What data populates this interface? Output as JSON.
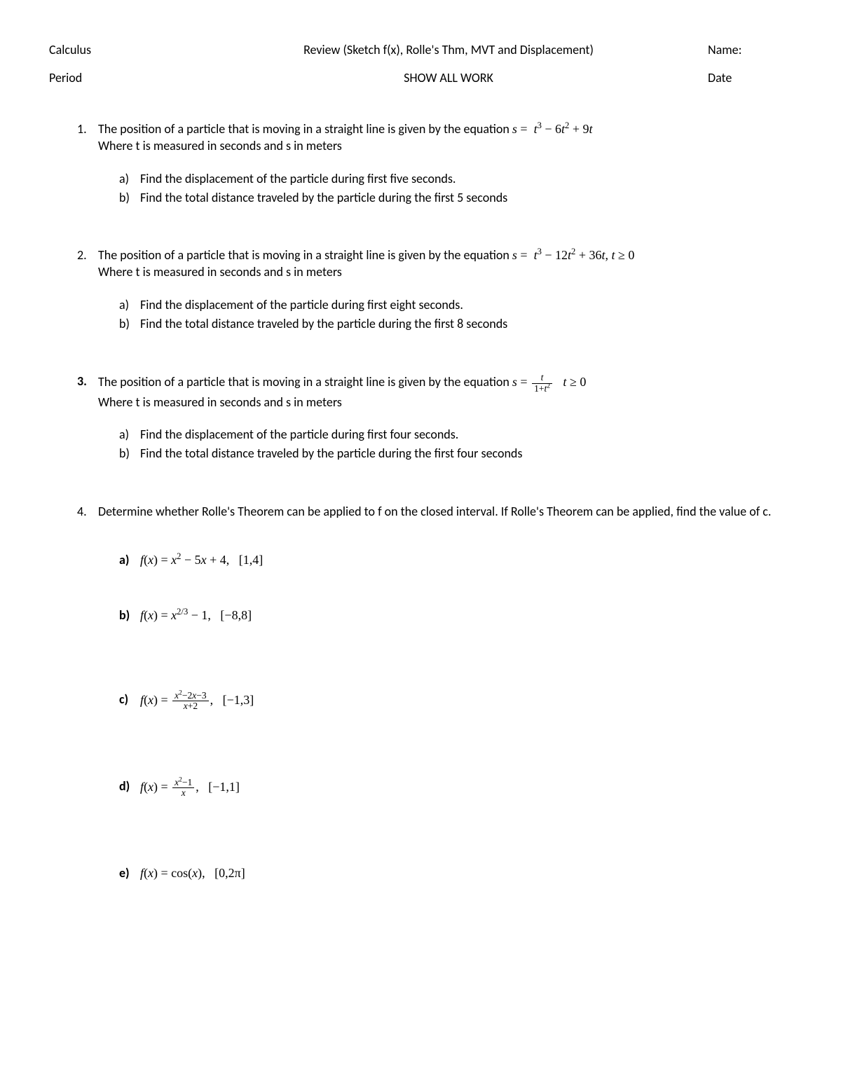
{
  "header": {
    "row1": {
      "left": "Calculus",
      "center": "Review (Sketch f(x), Rolle's Thm, MVT and Displacement)",
      "right": "Name:"
    },
    "row2": {
      "left": "Period",
      "center": "SHOW ALL WORK",
      "right": "Date"
    }
  },
  "problems": [
    {
      "num": "1.",
      "intro_pre": "The position of a particle that is moving in a straight line is given by the equation ",
      "eq_html": "<span class='ital'>s</span> = &nbsp;<span class='ital'>t</span><sup>3</sup> − 6<span class='ital'>t</span><sup>2</sup> + 9<span class='ital'>t</span>",
      "intro_post": "",
      "where": "Where t is measured in seconds and s in meters",
      "sub": [
        {
          "l": "a)",
          "t": "Find the displacement of the particle during first five seconds."
        },
        {
          "l": "b)",
          "t": "Find the total distance traveled by the particle during the first 5 seconds"
        }
      ]
    },
    {
      "num": "2.",
      "intro_pre": "The position of a particle that is moving in a straight line is given by the equation ",
      "eq_html": "<span class='ital'>s</span> = &nbsp;<span class='ital'>t</span><sup>3</sup> − 12<span class='ital'>t</span><sup>2</sup> + 36<span class='ital'>t</span>, <span class='ital'>t</span> ≥ 0",
      "intro_post": "",
      "where": "Where t is measured in seconds and s in meters",
      "sub": [
        {
          "l": "a)",
          "t": "Find the displacement of the particle during first eight seconds."
        },
        {
          "l": "b)",
          "t": "Find the total distance traveled by the particle during the first 8 seconds"
        }
      ]
    },
    {
      "num": "3.",
      "intro_pre": "The position of a particle that is moving in a straight line is given by the equation ",
      "eq_html": "<span class='ital'>s</span> = <span class='frac'><span class='num'><span class='ital'>t</span></span><span class='den'>1+<span class='ital'>t</span><sup>2</sup></span></span>&nbsp;&nbsp;&nbsp;<span class='ital'>t</span> ≥ 0",
      "intro_post": "",
      "where": "Where t is measured in seconds and s in meters",
      "sub": [
        {
          "l": "a)",
          "t": "Find the displacement of the particle during first four seconds."
        },
        {
          "l": "b)",
          "t": "Find the total distance traveled by the particle during the first four seconds"
        }
      ]
    }
  ],
  "p4": {
    "num": "4.",
    "text": "Determine whether Rolle's Theorem can be applied to f on the closed interval. If Rolle's Theorem can be applied, find the value of c.",
    "items": [
      {
        "l": "a)",
        "html": "<span class='ital'>f</span>(<span class='ital'>x</span>) = <span class='ital'>x</span><sup>2</sup> − 5<span class='ital'>x</span> + 4,&nbsp;&nbsp;&nbsp;[1,4]"
      },
      {
        "l": "b)",
        "html": "<span class='ital'>f</span>(<span class='ital'>x</span>) = <span class='ital'>x</span><sup>2/3</sup> − 1,&nbsp;&nbsp;&nbsp;[−8,8]"
      },
      {
        "l": "c)",
        "html": "<span class='ital'>f</span>(<span class='ital'>x</span>) = <span class='frac'><span class='num'><span class='ital'>x</span><sup>2</sup>−2<span class='ital'>x</span>−3</span><span class='den'><span class='ital'>x</span>+2</span></span>,&nbsp;&nbsp;&nbsp;[−1,3]"
      },
      {
        "l": "d)",
        "html": "<span class='ital'>f</span>(<span class='ital'>x</span>) = <span class='frac'><span class='num'><span class='ital'>x</span><sup>2</sup>−1</span><span class='den'><span class='ital'>x</span></span></span>,&nbsp;&nbsp;&nbsp;[−1,1]"
      },
      {
        "l": "e)",
        "html": "<span class='ital'>f</span>(<span class='ital'>x</span>) = cos(<span class='ital'>x</span>),&nbsp;&nbsp;&nbsp;[0,2π]"
      }
    ]
  }
}
